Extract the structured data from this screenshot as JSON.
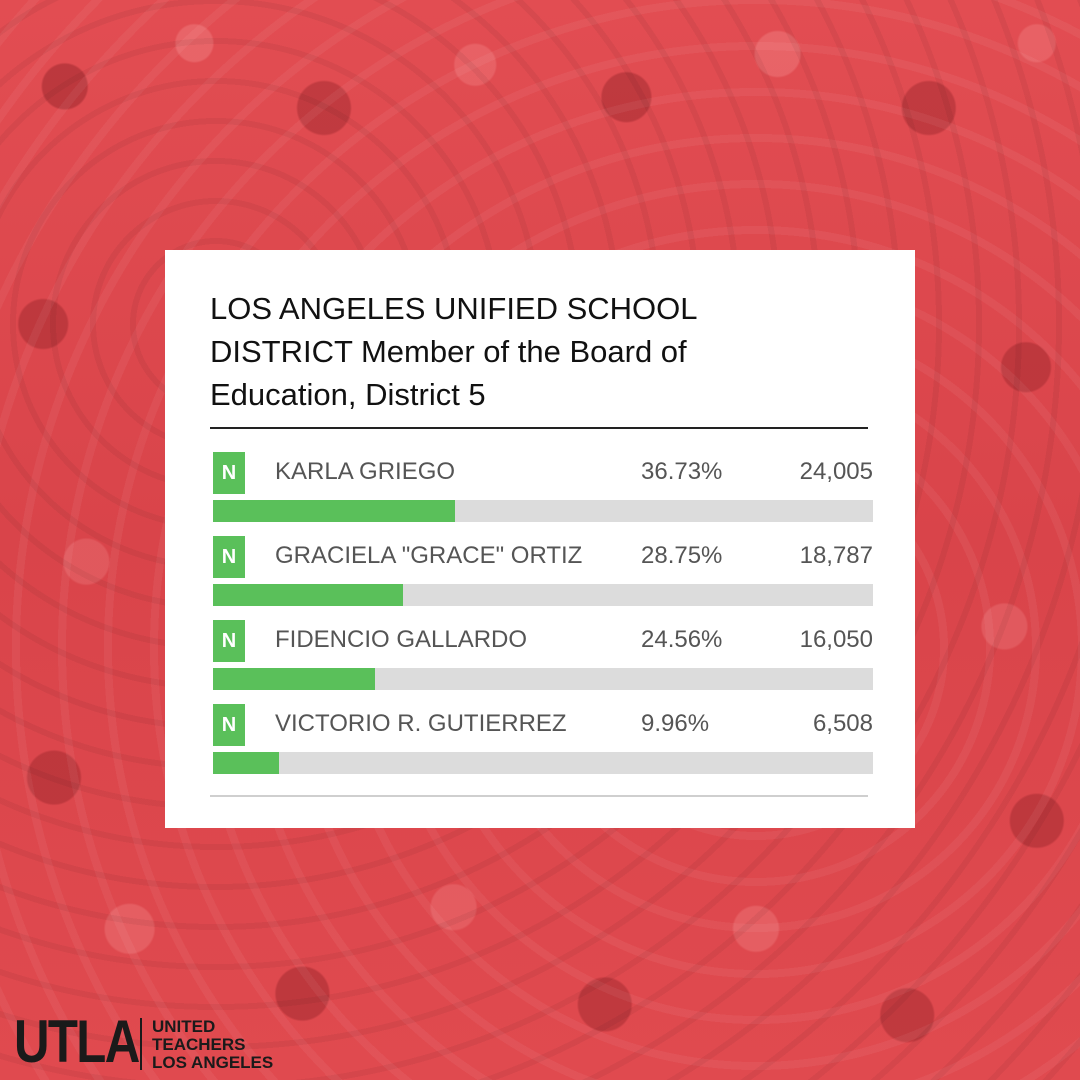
{
  "colors": {
    "background": "#e04a4f",
    "card": "#ffffff",
    "bar_fill": "#5ac05a",
    "bar_track": "#dcdcdc",
    "badge": "#5ac05a"
  },
  "chart_data": {
    "type": "bar",
    "title": "LOS ANGELES UNIFIED SCHOOL DISTRICT Member of the Board of Education, District 5",
    "xlabel": "",
    "ylabel": "",
    "grid": false,
    "categories": [
      "KARLA GRIEGO",
      "GRACIELA \"GRACE\" ORTIZ",
      "FIDENCIO GALLARDO",
      "VICTORIO R. GUTIERREZ"
    ],
    "series": [
      {
        "values": [
          36.73,
          28.75,
          24.56,
          9.96
        ]
      }
    ],
    "ylim": [
      0,
      100
    ],
    "rows": [
      {
        "badge": "N",
        "name": "KARLA GRIEGO",
        "pct_label": "36.73%",
        "pct": 36.73,
        "votes": "24,005"
      },
      {
        "badge": "N",
        "name": "GRACIELA \"GRACE\" ORTIZ",
        "pct_label": "28.75%",
        "pct": 28.75,
        "votes": "18,787"
      },
      {
        "badge": "N",
        "name": "FIDENCIO GALLARDO",
        "pct_label": "24.56%",
        "pct": 24.56,
        "votes": "16,050"
      },
      {
        "badge": "N",
        "name": "VICTORIO R. GUTIERREZ",
        "pct_label": "9.96%",
        "pct": 9.96,
        "votes": "6,508"
      }
    ]
  },
  "logo": {
    "mark": "UTLA",
    "line1": "UNITED",
    "line2": "TEACHERS",
    "line3": "LOS ANGELES"
  }
}
